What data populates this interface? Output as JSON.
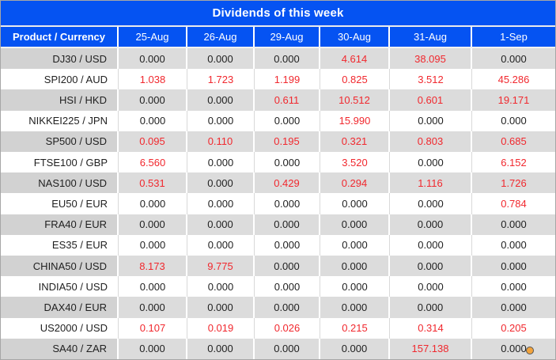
{
  "title": "Dividends of this week",
  "colors": {
    "header_blue": "#0553f2",
    "value_red": "#f1282e",
    "value_black": "#1f1f1f",
    "row_gray": "#dcdcdc",
    "row_gray_first_col": "#d2d2d2",
    "row_white": "#ffffff",
    "outer_border": "#a6a6a6",
    "dot_orange": "#f2a33c"
  },
  "icons": {
    "floating_dot": "orange-dot-icon"
  },
  "chart_data": {
    "type": "table",
    "title": "Dividends of this week",
    "columns": [
      "Product / Currency",
      "25-Aug",
      "26-Aug",
      "29-Aug",
      "30-Aug",
      "31-Aug",
      "1-Sep"
    ],
    "rows": [
      {
        "product": "DJ30 / USD",
        "values": [
          "0.000",
          "0.000",
          "0.000",
          "4.614",
          "38.095",
          "0.000"
        ]
      },
      {
        "product": "SPI200 / AUD",
        "values": [
          "1.038",
          "1.723",
          "1.199",
          "0.825",
          "3.512",
          "45.286"
        ]
      },
      {
        "product": "HSI / HKD",
        "values": [
          "0.000",
          "0.000",
          "0.611",
          "10.512",
          "0.601",
          "19.171"
        ]
      },
      {
        "product": "NIKKEI225 / JPN",
        "values": [
          "0.000",
          "0.000",
          "0.000",
          "15.990",
          "0.000",
          "0.000"
        ]
      },
      {
        "product": "SP500 / USD",
        "values": [
          "0.095",
          "0.110",
          "0.195",
          "0.321",
          "0.803",
          "0.685"
        ]
      },
      {
        "product": "FTSE100 / GBP",
        "values": [
          "6.560",
          "0.000",
          "0.000",
          "3.520",
          "0.000",
          "6.152"
        ]
      },
      {
        "product": "NAS100 / USD",
        "values": [
          "0.531",
          "0.000",
          "0.429",
          "0.294",
          "1.116",
          "1.726"
        ]
      },
      {
        "product": "EU50 / EUR",
        "values": [
          "0.000",
          "0.000",
          "0.000",
          "0.000",
          "0.000",
          "0.784"
        ]
      },
      {
        "product": "FRA40 / EUR",
        "values": [
          "0.000",
          "0.000",
          "0.000",
          "0.000",
          "0.000",
          "0.000"
        ]
      },
      {
        "product": "ES35 / EUR",
        "values": [
          "0.000",
          "0.000",
          "0.000",
          "0.000",
          "0.000",
          "0.000"
        ]
      },
      {
        "product": "CHINA50 / USD",
        "values": [
          "8.173",
          "9.775",
          "0.000",
          "0.000",
          "0.000",
          "0.000"
        ]
      },
      {
        "product": "INDIA50 / USD",
        "values": [
          "0.000",
          "0.000",
          "0.000",
          "0.000",
          "0.000",
          "0.000"
        ]
      },
      {
        "product": "DAX40 / EUR",
        "values": [
          "0.000",
          "0.000",
          "0.000",
          "0.000",
          "0.000",
          "0.000"
        ]
      },
      {
        "product": "US2000 / USD",
        "values": [
          "0.107",
          "0.019",
          "0.026",
          "0.215",
          "0.314",
          "0.205"
        ]
      },
      {
        "product": "SA40 / ZAR",
        "values": [
          "0.000",
          "0.000",
          "0.000",
          "0.000",
          "157.138",
          "0.000"
        ]
      }
    ]
  }
}
